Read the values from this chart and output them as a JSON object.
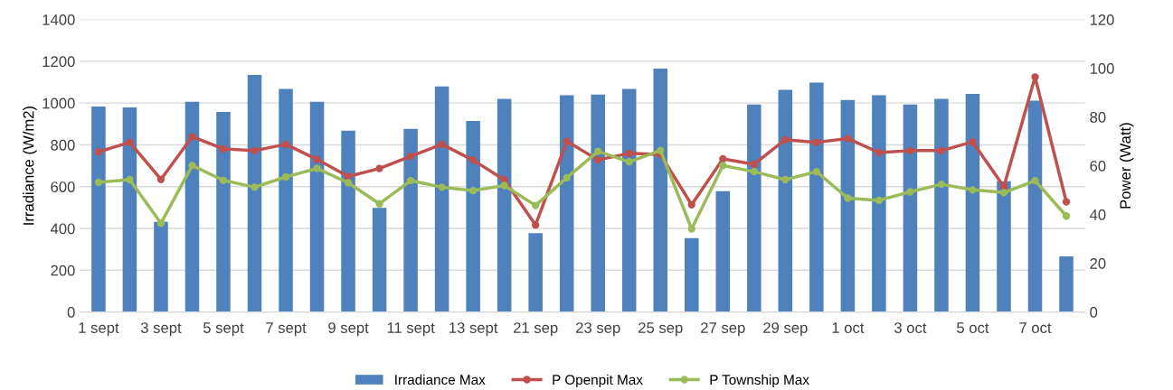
{
  "chart_data": {
    "type": "bar",
    "categories": [
      "1 sept",
      null,
      "3 sept",
      null,
      "5 sept",
      null,
      "7 sept",
      null,
      "9 sept",
      null,
      "11 sept",
      null,
      "13 sept",
      null,
      "21 sep",
      null,
      "23 sep",
      null,
      "25 sep",
      null,
      "27 sep",
      null,
      "29 sep",
      null,
      "1 oct",
      null,
      "3 oct",
      null,
      "5 oct",
      null,
      "7 oct",
      null
    ],
    "ylabel": "Irradiance (W/m2)",
    "y2label": "Power (Watt)",
    "ylim": [
      0,
      1400
    ],
    "yticks": [
      0,
      200,
      400,
      600,
      800,
      1000,
      1200,
      1400
    ],
    "y2lim": [
      0,
      120
    ],
    "y2ticks": [
      0,
      20,
      40,
      60,
      80,
      100,
      120
    ],
    "grid": "y",
    "legend": "bottom",
    "marker": "circle",
    "series": [
      {
        "name": "Irradiance Max",
        "color": "#4f81bd",
        "values": [
          983,
          979,
          431,
          1006,
          957,
          1135,
          1068,
          1006,
          868,
          498,
          876,
          1080,
          914,
          1020,
          377,
          1037,
          1041,
          1068,
          1165,
          354,
          578,
          993,
          1063,
          1098,
          1015,
          1038,
          993,
          1020,
          1044,
          626,
          1012,
          266
        ]
      },
      {
        "name": "P Openpit Max",
        "type": "line",
        "axis": "y2",
        "color": "#c0504d",
        "values": [
          65.7,
          69.6,
          54.4,
          71.9,
          66.9,
          66.2,
          68.8,
          62.6,
          55.6,
          58.9,
          63.9,
          68.8,
          62.3,
          54.2,
          35.7,
          70.0,
          62.4,
          65.1,
          64.6,
          44.0,
          62.8,
          60.6,
          70.7,
          69.6,
          71.2,
          65.4,
          66.2,
          66.2,
          69.8,
          51.4,
          96.4,
          45.2
        ]
      },
      {
        "name": "P Township Max",
        "type": "line",
        "axis": "y2",
        "color": "#9bbb59",
        "values": [
          53.2,
          54.3,
          36.4,
          60.1,
          54.0,
          51.2,
          55.4,
          58.9,
          53.0,
          44.4,
          53.9,
          51.2,
          49.8,
          51.9,
          43.7,
          55.1,
          65.9,
          61.6,
          66.3,
          34.1,
          60.1,
          57.6,
          54.3,
          57.6,
          46.7,
          45.8,
          49.3,
          52.4,
          50.1,
          49.0,
          53.9,
          39.4
        ]
      }
    ]
  }
}
